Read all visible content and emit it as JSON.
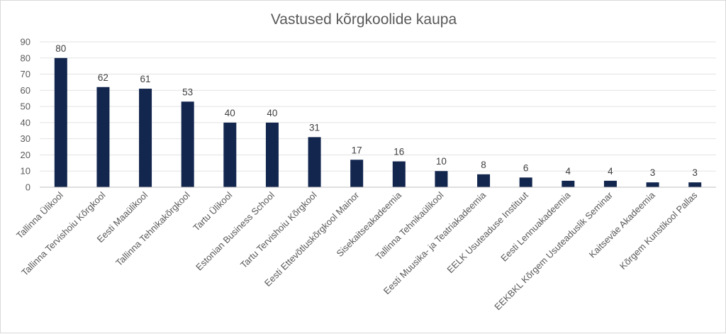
{
  "chart_data": {
    "type": "bar",
    "title": "Vastused kõrgkoolide kaupa",
    "xlabel": "",
    "ylabel": "",
    "ylim": [
      0,
      90
    ],
    "yticks": [
      0,
      10,
      20,
      30,
      40,
      50,
      60,
      70,
      80,
      90
    ],
    "grid": true,
    "legend": "none",
    "bar_color": "#13264e",
    "categories": [
      "Tallinna Ülikool",
      "Tallinna Tervishoiu Kõrgkool",
      "Eesti Maaülikool",
      "Tallinna Tehnikakõrgkool",
      "Tartu Ülikool",
      "Estonian Business School",
      "Tartu Tervishoiu Kõrgkool",
      "Eesti Ettevõtluskõrgkool Mainor",
      "Sisekaitseakadeemia",
      "Tallinna Tehnikaülikool",
      "Eesti Muusika- ja Teatriakadeemia",
      "EELK Usuteaduse Instituut",
      "Eesti Lennuakadeemia",
      "EEKBKL Kõrgem Usuteaduslik Seminar",
      "Kaitseväe Akadeemia",
      "Kõrgem Kunstikool Pallas"
    ],
    "values": [
      80,
      62,
      61,
      53,
      40,
      40,
      31,
      17,
      16,
      10,
      8,
      6,
      4,
      4,
      3,
      3
    ]
  }
}
